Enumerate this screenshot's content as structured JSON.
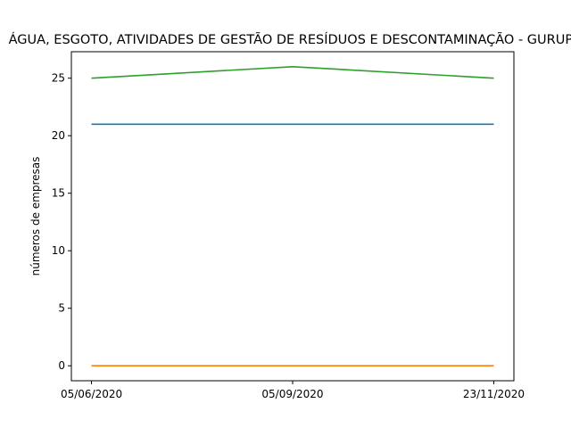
{
  "chart_data": {
    "type": "line",
    "title": "ÁGUA, ESGOTO, ATIVIDADES DE GESTÃO DE RESÍDUOS E DESCONTAMINAÇÃO - GURUPI",
    "xlabel": "",
    "ylabel": "números de empresas",
    "x": [
      "05/06/2020",
      "05/09/2020",
      "23/11/2020"
    ],
    "ylim": [
      -1.3,
      27.3
    ],
    "yticks": [
      0,
      5,
      10,
      15,
      20,
      25
    ],
    "grid": false,
    "series": [
      {
        "values": [
          21,
          21,
          21
        ],
        "color": "#1f77b4"
      },
      {
        "values": [
          0,
          0,
          0
        ],
        "color": "#ff7f0e"
      },
      {
        "values": [
          25,
          26,
          25
        ],
        "color": "#2ca02c"
      }
    ]
  }
}
